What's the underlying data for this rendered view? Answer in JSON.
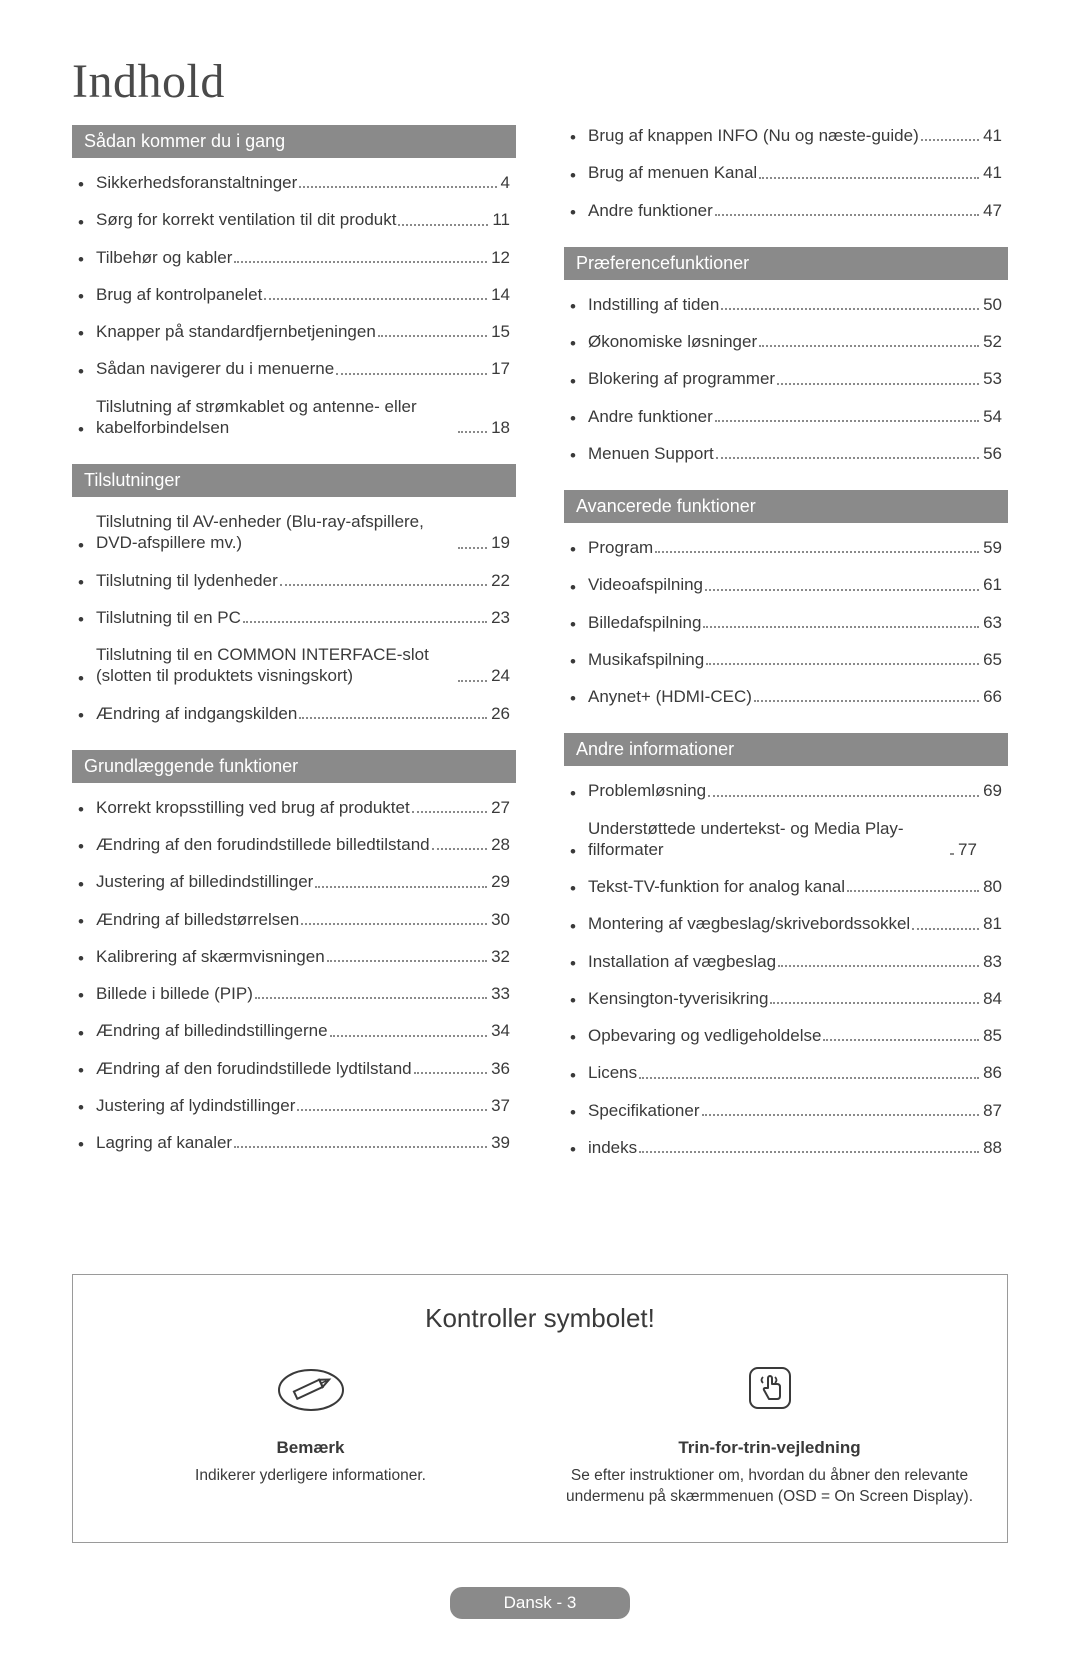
{
  "page_title": "Indhold",
  "colors": {
    "heading_bg": "#8a8a8a",
    "heading_text": "#ffffff",
    "body_text": "#3a3a3a",
    "dots": "#8a8a8a",
    "pill_bg": "#8a8a8a",
    "border": "#9a9a9a",
    "background": "#ffffff"
  },
  "typography": {
    "title_font": "Georgia serif",
    "title_size_pt": 36,
    "heading_size_pt": 13,
    "body_size_pt": 12
  },
  "left_column": [
    {
      "heading": "Sådan kommer du i gang",
      "items": [
        {
          "label": "Sikkerhedsforanstaltninger",
          "page": "4"
        },
        {
          "label": "Sørg for korrekt ventilation til dit produkt",
          "page": "11"
        },
        {
          "label": "Tilbehør og kabler",
          "page": "12"
        },
        {
          "label": "Brug af kontrolpanelet",
          "page": "14"
        },
        {
          "label": "Knapper på standardfjernbetjeningen",
          "page": "15"
        },
        {
          "label": "Sådan navigerer du i menuerne",
          "page": "17"
        },
        {
          "label": "Tilslutning af strømkablet og antenne- eller kabelforbindelsen",
          "page": "18"
        }
      ]
    },
    {
      "heading": "Tilslutninger",
      "items": [
        {
          "label": "Tilslutning til AV-enheder (Blu-ray-afspillere, DVD-afspillere mv.)",
          "page": "19"
        },
        {
          "label": "Tilslutning til lydenheder",
          "page": "22"
        },
        {
          "label": "Tilslutning til en PC",
          "page": "23"
        },
        {
          "label": "Tilslutning til en COMMON INTERFACE-slot (slotten til produktets visningskort)",
          "page": "24"
        },
        {
          "label": "Ændring af indgangskilden",
          "page": "26"
        }
      ]
    },
    {
      "heading": "Grundlæggende funktioner",
      "items": [
        {
          "label": "Korrekt kropsstilling ved brug af produktet",
          "page": "27"
        },
        {
          "label": "Ændring af den forudindstillede billedtilstand",
          "page": "28"
        },
        {
          "label": "Justering af billedindstillinger",
          "page": "29"
        },
        {
          "label": "Ændring af billedstørrelsen",
          "page": "30"
        },
        {
          "label": "Kalibrering af skærmvisningen",
          "page": "32"
        },
        {
          "label": "Billede i billede (PIP)",
          "page": "33"
        },
        {
          "label": "Ændring af billedindstillingerne",
          "page": "34"
        },
        {
          "label": "Ændring af den forudindstillede lydtilstand",
          "page": "36"
        },
        {
          "label": "Justering af lydindstillinger",
          "page": "37"
        },
        {
          "label": "Lagring af kanaler",
          "page": "39"
        }
      ]
    }
  ],
  "right_column": [
    {
      "heading": null,
      "items": [
        {
          "label": "Brug af knappen INFO (Nu og næste-guide)",
          "page": "41"
        },
        {
          "label": "Brug af menuen Kanal",
          "page": "41"
        },
        {
          "label": "Andre funktioner",
          "page": "47"
        }
      ]
    },
    {
      "heading": "Præferencefunktioner",
      "items": [
        {
          "label": "Indstilling af tiden",
          "page": "50"
        },
        {
          "label": "Økonomiske løsninger",
          "page": "52"
        },
        {
          "label": "Blokering af programmer",
          "page": "53"
        },
        {
          "label": "Andre funktioner",
          "page": "54"
        },
        {
          "label": "Menuen Support",
          "page": "56"
        }
      ]
    },
    {
      "heading": "Avancerede funktioner",
      "items": [
        {
          "label": "Program",
          "page": "59"
        },
        {
          "label": "Videoafspilning",
          "page": "61"
        },
        {
          "label": "Billedafspilning",
          "page": "63"
        },
        {
          "label": "Musikafspilning",
          "page": "65"
        },
        {
          "label": "Anynet+ (HDMI-CEC)",
          "page": "66"
        }
      ]
    },
    {
      "heading": "Andre informationer",
      "items": [
        {
          "label": "Problemløsning",
          "page": "69"
        },
        {
          "label": "Understøttede undertekst- og Media Play-filformater",
          "page": "77",
          "tight": true
        },
        {
          "label": "Tekst-TV-funktion for analog kanal",
          "page": "80"
        },
        {
          "label": "Montering af vægbeslag/skrivebordssokkel",
          "page": "81"
        },
        {
          "label": "Installation af vægbeslag",
          "page": "83"
        },
        {
          "label": "Kensington-tyverisikring",
          "page": "84"
        },
        {
          "label": "Opbevaring og vedligeholdelse",
          "page": "85"
        },
        {
          "label": "Licens",
          "page": "86"
        },
        {
          "label": "Specifikationer",
          "page": "87"
        },
        {
          "label": "indeks",
          "page": "88"
        }
      ]
    }
  ],
  "symbol_box": {
    "title": "Kontroller symbolet!",
    "note": {
      "icon": "pencil-icon",
      "label": "Bemærk",
      "desc": "Indikerer yderligere informationer."
    },
    "guide": {
      "icon": "tap-icon",
      "label": "Trin-for-trin-vejledning",
      "desc": "Se efter instruktioner om, hvordan du åbner den relevante undermenu på skærmmenuen (OSD = On Screen Display)."
    }
  },
  "footer": "Dansk - 3"
}
